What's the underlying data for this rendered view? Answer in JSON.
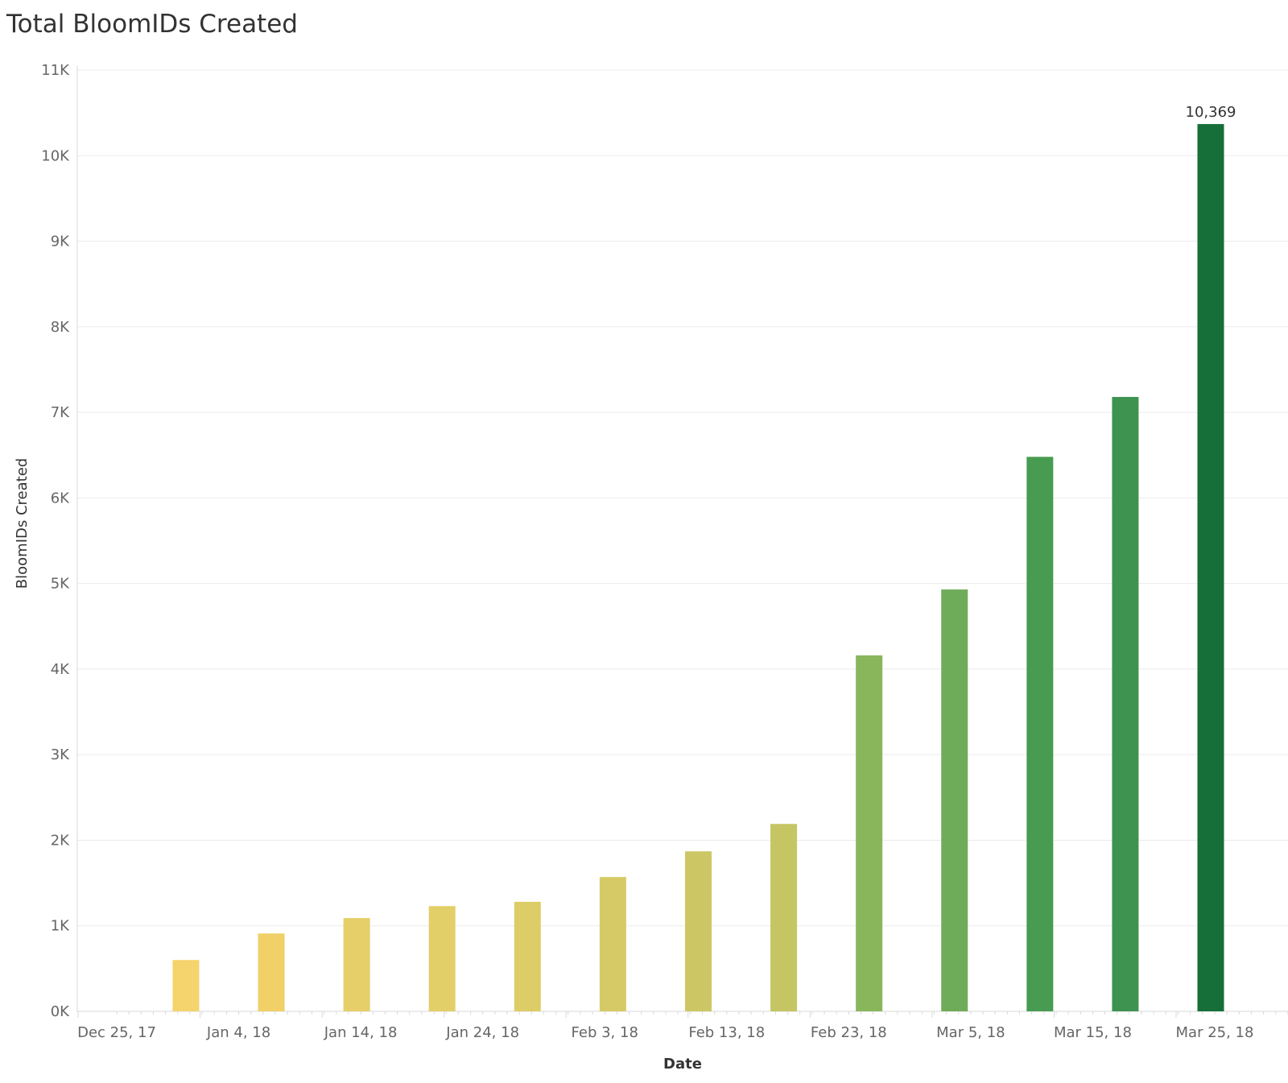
{
  "chart_data": {
    "type": "bar",
    "title": "Total BloomIDs Created",
    "xlabel": "Date",
    "ylabel": "BloomIDs Created",
    "ylim": [
      0,
      11000
    ],
    "y_ticks": [
      {
        "value": 0,
        "label": "0K"
      },
      {
        "value": 1000,
        "label": "1K"
      },
      {
        "value": 2000,
        "label": "2K"
      },
      {
        "value": 3000,
        "label": "3K"
      },
      {
        "value": 4000,
        "label": "4K"
      },
      {
        "value": 5000,
        "label": "5K"
      },
      {
        "value": 6000,
        "label": "6K"
      },
      {
        "value": 7000,
        "label": "7K"
      },
      {
        "value": 8000,
        "label": "8K"
      },
      {
        "value": 9000,
        "label": "9K"
      },
      {
        "value": 10000,
        "label": "10K"
      },
      {
        "value": 11000,
        "label": "11K"
      }
    ],
    "xlim": [
      "2017-12-25",
      "2018-03-31"
    ],
    "x_ticks": [
      {
        "date": "2017-12-25",
        "label": "Dec 25, 17"
      },
      {
        "date": "2018-01-04",
        "label": "Jan 4, 18"
      },
      {
        "date": "2018-01-14",
        "label": "Jan 14, 18"
      },
      {
        "date": "2018-01-24",
        "label": "Jan 24, 18"
      },
      {
        "date": "2018-02-03",
        "label": "Feb 3, 18"
      },
      {
        "date": "2018-02-13",
        "label": "Feb 13, 18"
      },
      {
        "date": "2018-02-23",
        "label": "Feb 23, 18"
      },
      {
        "date": "2018-03-05",
        "label": "Mar 5, 18"
      },
      {
        "date": "2018-03-15",
        "label": "Mar 15, 18"
      },
      {
        "date": "2018-03-25",
        "label": "Mar 25, 18"
      }
    ],
    "bars": [
      {
        "date": "2017-12-31",
        "value": 600,
        "color": "#f5d36d"
      },
      {
        "date": "2018-01-07",
        "value": 910,
        "color": "#f0d067"
      },
      {
        "date": "2018-01-14",
        "value": 1090,
        "color": "#e6cf68"
      },
      {
        "date": "2018-01-21",
        "value": 1230,
        "color": "#e3cf68"
      },
      {
        "date": "2018-01-28",
        "value": 1280,
        "color": "#ddcd66"
      },
      {
        "date": "2018-02-04",
        "value": 1570,
        "color": "#d6ca66"
      },
      {
        "date": "2018-02-11",
        "value": 1870,
        "color": "#ccc764"
      },
      {
        "date": "2018-02-18",
        "value": 2190,
        "color": "#c5c563"
      },
      {
        "date": "2018-02-25",
        "value": 4160,
        "color": "#89b65b"
      },
      {
        "date": "2018-03-04",
        "value": 4930,
        "color": "#6fac59"
      },
      {
        "date": "2018-03-11",
        "value": 6480,
        "color": "#489c51"
      },
      {
        "date": "2018-03-18",
        "value": 7180,
        "color": "#3e9350"
      },
      {
        "date": "2018-03-25",
        "value": 10369,
        "color": "#166f38"
      }
    ],
    "data_labels": [
      {
        "date": "2018-03-25",
        "value": 10369,
        "text": "10,369"
      }
    ],
    "grid": true,
    "legend": "none",
    "colors": {
      "gridline": "#ebebeb",
      "axis": "#d9d9d9",
      "tick_text": "#666666",
      "title_text": "#333333"
    }
  }
}
